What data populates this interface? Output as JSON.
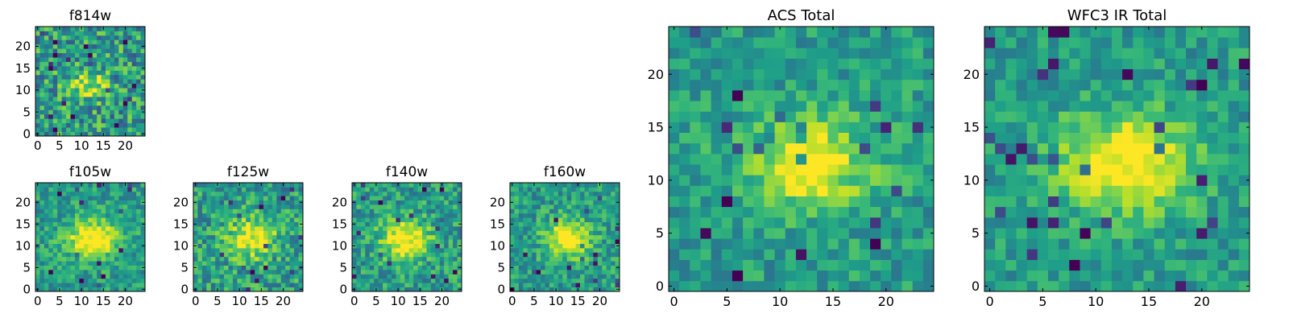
{
  "chart_data": [
    {
      "type": "heatmap",
      "title": "f814w",
      "x_ticks": [
        "0",
        "5",
        "10",
        "15",
        "20"
      ],
      "y_ticks": [
        "0",
        "5",
        "10",
        "15",
        "20"
      ],
      "xlim": [
        -0.5,
        24.5
      ],
      "ylim": [
        -0.5,
        24.5
      ],
      "grid": false,
      "colormap": "viridis",
      "n": 25
    },
    {
      "type": "heatmap",
      "title": "f105w",
      "x_ticks": [
        "0",
        "5",
        "10",
        "15",
        "20"
      ],
      "y_ticks": [
        "0",
        "5",
        "10",
        "15",
        "20"
      ],
      "xlim": [
        -0.5,
        24.5
      ],
      "ylim": [
        -0.5,
        24.5
      ],
      "grid": false,
      "colormap": "viridis",
      "n": 25
    },
    {
      "type": "heatmap",
      "title": "f125w",
      "x_ticks": [
        "0",
        "5",
        "10",
        "15",
        "20"
      ],
      "y_ticks": [
        "0",
        "5",
        "10",
        "15",
        "20"
      ],
      "xlim": [
        -0.5,
        24.5
      ],
      "ylim": [
        -0.5,
        24.5
      ],
      "grid": false,
      "colormap": "viridis",
      "n": 25
    },
    {
      "type": "heatmap",
      "title": "f140w",
      "x_ticks": [
        "0",
        "5",
        "10",
        "15",
        "20"
      ],
      "y_ticks": [
        "0",
        "5",
        "10",
        "15",
        "20"
      ],
      "xlim": [
        -0.5,
        24.5
      ],
      "ylim": [
        -0.5,
        24.5
      ],
      "grid": false,
      "colormap": "viridis",
      "n": 25
    },
    {
      "type": "heatmap",
      "title": "f160w",
      "x_ticks": [
        "0",
        "5",
        "10",
        "15",
        "20"
      ],
      "y_ticks": [
        "0",
        "5",
        "10",
        "15",
        "20"
      ],
      "xlim": [
        -0.5,
        24.5
      ],
      "ylim": [
        -0.5,
        24.5
      ],
      "grid": false,
      "colormap": "viridis",
      "n": 25
    },
    {
      "type": "heatmap",
      "title": "ACS Total",
      "x_ticks": [
        "0",
        "5",
        "10",
        "15",
        "20"
      ],
      "y_ticks": [
        "0",
        "5",
        "10",
        "15",
        "20"
      ],
      "xlim": [
        -0.5,
        24.5
      ],
      "ylim": [
        -0.5,
        24.5
      ],
      "grid": false,
      "colormap": "viridis",
      "n": 25
    },
    {
      "type": "heatmap",
      "title": "WFC3 IR Total",
      "x_ticks": [
        "0",
        "5",
        "10",
        "15",
        "20"
      ],
      "y_ticks": [
        "0",
        "5",
        "10",
        "15",
        "20"
      ],
      "xlim": [
        -0.5,
        24.5
      ],
      "ylim": [
        -0.5,
        24.5
      ],
      "grid": false,
      "colormap": "viridis",
      "n": 25
    }
  ]
}
